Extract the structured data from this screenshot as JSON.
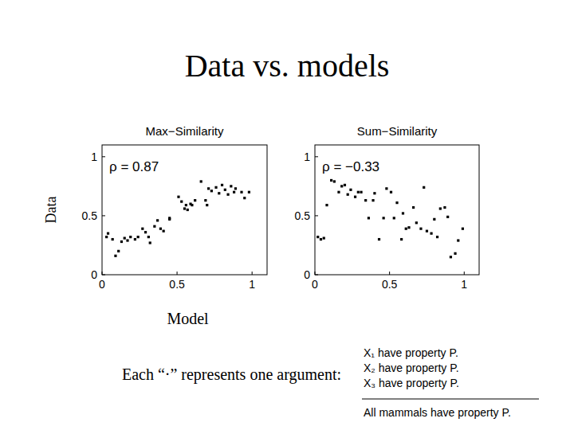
{
  "title": "Data vs. models",
  "chart_data": [
    {
      "type": "scatter",
      "title": "Max−Similarity",
      "annotation": "ρ = 0.87",
      "x_label": "Model",
      "y_label": "Data",
      "x": [
        0.03,
        0.04,
        0.07,
        0.09,
        0.11,
        0.13,
        0.15,
        0.17,
        0.19,
        0.22,
        0.24,
        0.27,
        0.29,
        0.31,
        0.32,
        0.35,
        0.37,
        0.39,
        0.41,
        0.45,
        0.45,
        0.51,
        0.53,
        0.55,
        0.56,
        0.57,
        0.59,
        0.6,
        0.62,
        0.66,
        0.69,
        0.7,
        0.71,
        0.73,
        0.76,
        0.78,
        0.8,
        0.82,
        0.84,
        0.86,
        0.88,
        0.89,
        0.93,
        0.95,
        0.98
      ],
      "values": [
        0.32,
        0.35,
        0.3,
        0.16,
        0.2,
        0.28,
        0.31,
        0.29,
        0.32,
        0.3,
        0.32,
        0.39,
        0.36,
        0.32,
        0.27,
        0.41,
        0.46,
        0.39,
        0.37,
        0.48,
        0.47,
        0.66,
        0.62,
        0.56,
        0.59,
        0.55,
        0.6,
        0.59,
        0.63,
        0.79,
        0.63,
        0.59,
        0.73,
        0.71,
        0.74,
        0.69,
        0.76,
        0.72,
        0.68,
        0.75,
        0.7,
        0.73,
        0.7,
        0.65,
        0.7
      ],
      "color": "#000000",
      "marker": "square",
      "xlim": [
        0,
        1.1
      ],
      "ylim": [
        0,
        1.1
      ],
      "xticks": [
        0,
        0.5,
        1
      ],
      "yticks": [
        0,
        0.5,
        1
      ],
      "grid": false
    },
    {
      "type": "scatter",
      "title": "Sum−Similarity",
      "annotation": "ρ = −0.33",
      "x": [
        0.02,
        0.04,
        0.06,
        0.08,
        0.11,
        0.13,
        0.16,
        0.18,
        0.2,
        0.22,
        0.24,
        0.27,
        0.29,
        0.31,
        0.34,
        0.36,
        0.39,
        0.4,
        0.43,
        0.46,
        0.48,
        0.51,
        0.53,
        0.55,
        0.58,
        0.59,
        0.61,
        0.63,
        0.66,
        0.68,
        0.71,
        0.73,
        0.75,
        0.78,
        0.8,
        0.82,
        0.84,
        0.87,
        0.89,
        0.91,
        0.94,
        0.96,
        0.99
      ],
      "values": [
        0.32,
        0.3,
        0.31,
        0.59,
        0.8,
        0.79,
        0.7,
        0.75,
        0.76,
        0.68,
        0.72,
        0.66,
        0.7,
        0.7,
        0.63,
        0.48,
        0.63,
        0.69,
        0.3,
        0.48,
        0.73,
        0.7,
        0.48,
        0.61,
        0.3,
        0.52,
        0.39,
        0.4,
        0.57,
        0.44,
        0.39,
        0.74,
        0.37,
        0.35,
        0.47,
        0.32,
        0.56,
        0.57,
        0.49,
        0.15,
        0.18,
        0.29,
        0.39
      ],
      "color": "#000000",
      "marker": "square",
      "xlim": [
        0,
        1.1
      ],
      "ylim": [
        0,
        1.1
      ],
      "xticks": [
        0,
        0.5,
        1
      ],
      "yticks": [
        0,
        0.5,
        1
      ],
      "grid": false
    }
  ],
  "caption": {
    "text": "Each “·” represents one argument:",
    "premises": [
      "X₁ have property P.",
      "X₂ have property P.",
      "X₃ have property P."
    ],
    "conclusion": "All mammals have property P."
  }
}
